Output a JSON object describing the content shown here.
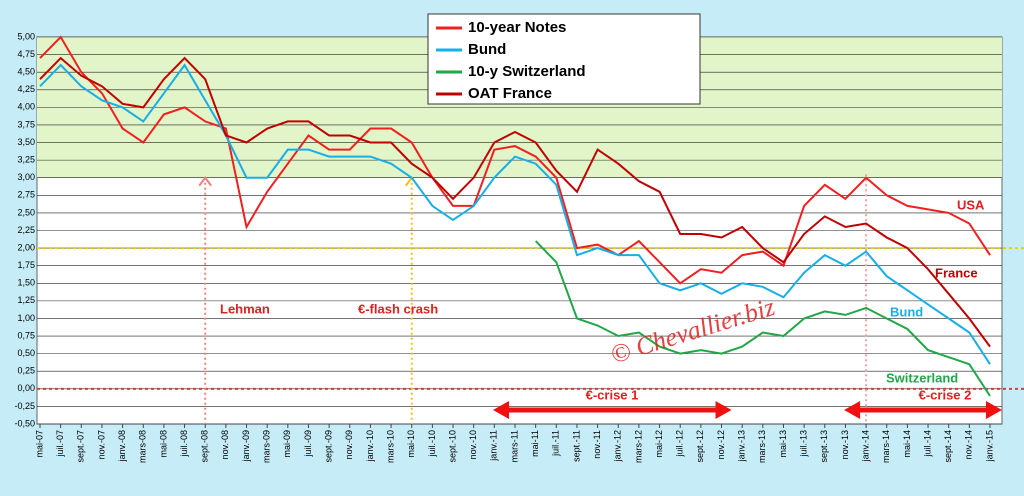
{
  "chart_data": {
    "type": "line",
    "categories": [
      "mai-07",
      "juil.-07",
      "sept.-07",
      "nov.-07",
      "janv.-08",
      "mars-08",
      "mai-08",
      "juil.-08",
      "sept.-08",
      "nov.-08",
      "janv.-09",
      "mars-09",
      "mai-09",
      "juil.-09",
      "sept.-09",
      "nov.-09",
      "janv.-10",
      "mars-10",
      "mai-10",
      "juil.-10",
      "sept.-10",
      "nov.-10",
      "janv.-11",
      "mars-11",
      "mai-11",
      "juil.-11",
      "sept.-11",
      "nov.-11",
      "janv.-12",
      "mars-12",
      "mai-12",
      "juil.-12",
      "sept.-12",
      "nov.-12",
      "janv.-13",
      "mars-13",
      "mai-13",
      "juil.-13",
      "sept.-13",
      "nov.-13",
      "janv.-14",
      "mars-14",
      "mai-14",
      "juil.-14",
      "sept.-14",
      "nov.-14",
      "janv.-15"
    ],
    "series": [
      {
        "name": "10-year Notes",
        "color": "#f02020",
        "values": [
          4.7,
          5.0,
          4.5,
          4.2,
          3.7,
          3.5,
          3.9,
          4.0,
          3.8,
          3.7,
          2.3,
          2.8,
          3.2,
          3.6,
          3.4,
          3.4,
          3.7,
          3.7,
          3.5,
          3.0,
          2.6,
          2.6,
          3.4,
          3.45,
          3.3,
          3.0,
          2.0,
          2.05,
          1.9,
          2.1,
          1.8,
          1.5,
          1.7,
          1.65,
          1.9,
          1.95,
          1.75,
          2.6,
          2.9,
          2.7,
          3.0,
          2.75,
          2.6,
          2.55,
          2.5,
          2.35,
          1.9
        ]
      },
      {
        "name": "Bund",
        "color": "#18aee8",
        "values": [
          4.3,
          4.6,
          4.3,
          4.1,
          4.0,
          3.8,
          4.2,
          4.6,
          4.1,
          3.6,
          3.0,
          3.0,
          3.4,
          3.4,
          3.3,
          3.3,
          3.3,
          3.2,
          3.0,
          2.6,
          2.4,
          2.6,
          3.0,
          3.3,
          3.2,
          2.9,
          1.9,
          2.0,
          1.9,
          1.9,
          1.5,
          1.4,
          1.5,
          1.35,
          1.5,
          1.45,
          1.3,
          1.65,
          1.9,
          1.75,
          1.95,
          1.6,
          1.4,
          1.2,
          1.0,
          0.8,
          0.35
        ]
      },
      {
        "name": "10-y Switzerland",
        "color": "#20a848",
        "values": [
          null,
          null,
          null,
          null,
          null,
          null,
          null,
          null,
          null,
          null,
          null,
          null,
          null,
          null,
          null,
          null,
          null,
          null,
          null,
          null,
          null,
          null,
          null,
          null,
          2.1,
          1.8,
          1.0,
          0.9,
          0.75,
          0.8,
          0.6,
          0.5,
          0.55,
          0.5,
          0.6,
          0.8,
          0.75,
          1.0,
          1.1,
          1.05,
          1.15,
          1.0,
          0.85,
          0.55,
          0.45,
          0.35,
          -0.1
        ]
      },
      {
        "name": "OAT France",
        "color": "#c00000",
        "values": [
          4.4,
          4.7,
          4.45,
          4.3,
          4.05,
          4.0,
          4.4,
          4.7,
          4.4,
          3.6,
          3.5,
          3.7,
          3.8,
          3.8,
          3.6,
          3.6,
          3.5,
          3.5,
          3.2,
          3.0,
          2.7,
          3.0,
          3.5,
          3.65,
          3.5,
          3.1,
          2.8,
          3.4,
          3.2,
          2.95,
          2.8,
          2.2,
          2.2,
          2.15,
          2.3,
          2.0,
          1.8,
          2.2,
          2.45,
          2.3,
          2.35,
          2.15,
          2.0,
          1.7,
          1.35,
          1.0,
          0.6
        ]
      }
    ],
    "ylim": [
      -0.5,
      5.0
    ],
    "yticks": [
      {
        "value": 5,
        "label": "5,00"
      },
      {
        "value": 4.75,
        "label": "4,75"
      },
      {
        "value": 4.5,
        "label": "4,50"
      },
      {
        "value": 4.25,
        "label": "4,25"
      },
      {
        "value": 4,
        "label": "4,00"
      },
      {
        "value": 3.75,
        "label": "3,75"
      },
      {
        "value": 3.5,
        "label": "3,50"
      },
      {
        "value": 3.25,
        "label": "3,25"
      },
      {
        "value": 3,
        "label": "3,00"
      },
      {
        "value": 2.75,
        "label": "2,75"
      },
      {
        "value": 2.5,
        "label": "2,50"
      },
      {
        "value": 2.25,
        "label": "2,25"
      },
      {
        "value": 2,
        "label": "2,00"
      },
      {
        "value": 1.75,
        "label": "1,75"
      },
      {
        "value": 1.5,
        "label": "1,50"
      },
      {
        "value": 1.25,
        "label": "1,25"
      },
      {
        "value": 1,
        "label": "1,00"
      },
      {
        "value": 0.75,
        "label": "0,75"
      },
      {
        "value": 0.5,
        "label": "0,50"
      },
      {
        "value": 0.25,
        "label": "0,25"
      },
      {
        "value": 0,
        "label": "0,00"
      },
      {
        "value": -0.25,
        "label": "-0,25"
      },
      {
        "value": -0.5,
        "label": "-0,50"
      }
    ],
    "grid": true,
    "band": {
      "from": 3,
      "to": 5,
      "color": "#e2f5c8"
    },
    "reference_lines": [
      {
        "value": 2,
        "color": "#e8d000"
      },
      {
        "value": 0,
        "color": "#d04040"
      }
    ],
    "events": [
      {
        "label": "Lehman",
        "x": "sept.-08",
        "color": "#f08080"
      },
      {
        "label": "€-flash crash",
        "x": "mai-10",
        "color": "#f0c020"
      },
      {
        "x": "janv.-14",
        "color": "#f0a0a0"
      }
    ],
    "periods": [
      {
        "label": "€-crise 1",
        "from": "mars-11",
        "to": "nov.-12"
      },
      {
        "label": "€-crise 2",
        "from": "janv.-14",
        "to": "janv.-15"
      }
    ],
    "annotations": [
      "USA",
      "France",
      "Bund",
      "Switzerland"
    ],
    "watermark": "© Chevallier.biz"
  }
}
